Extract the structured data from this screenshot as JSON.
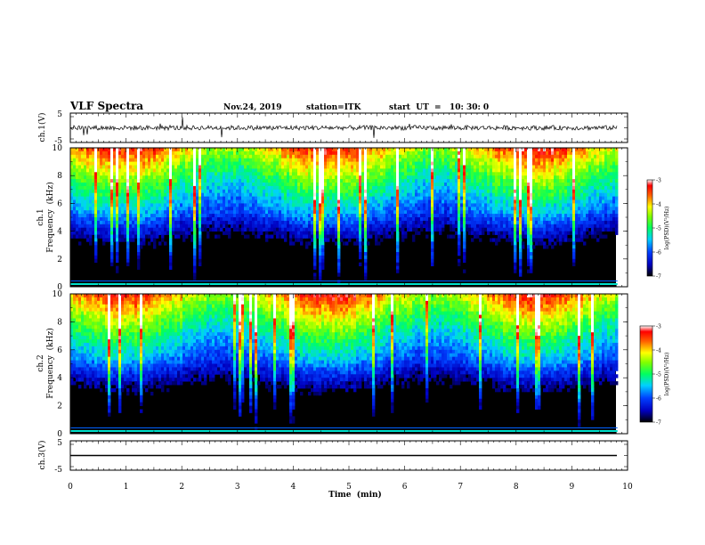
{
  "header": {
    "title": "VLF Spectra",
    "date": "Nov.24, 2019",
    "station": "station=ITK",
    "start_ut": "start  UT  =   10: 30: 0"
  },
  "chart_data": [
    {
      "type": "line",
      "name": "ch1-waveform",
      "ylabel": "ch.1(V)",
      "ylim": [
        -5,
        5
      ],
      "y_ticks": [
        "5",
        "-5"
      ],
      "x_range": [
        0,
        10
      ],
      "baseline_value": 0,
      "data_ends_at_min": 9.82
    },
    {
      "type": "heatmap",
      "name": "ch1-spectrogram",
      "ylabel_channel": "ch.1",
      "ylabel": "Frequency  (kHz)",
      "ylim": [
        0,
        10
      ],
      "y_ticks": [
        "0",
        "2",
        "4",
        "6",
        "8",
        "10"
      ],
      "x_range": [
        0,
        9.82
      ],
      "colorbar": {
        "label": "log(PSD)(V²/Hz)",
        "range": [
          -7,
          -3
        ],
        "ticks": [
          "-3",
          "-4",
          "-5",
          "-6",
          "-7"
        ]
      }
    },
    {
      "type": "heatmap",
      "name": "ch2-spectrogram",
      "ylabel_channel": "ch.2",
      "ylabel": "Frequency  (kHz)",
      "ylim": [
        0,
        10
      ],
      "y_ticks": [
        "0",
        "2",
        "4",
        "6",
        "8",
        "10"
      ],
      "x_range": [
        0,
        9.82
      ],
      "colorbar": {
        "label": "log(PSD)(V²/Hz)",
        "range": [
          -7,
          -3
        ],
        "ticks": [
          "-3",
          "-4",
          "-5",
          "-6",
          "-7"
        ]
      }
    },
    {
      "type": "line",
      "name": "ch3-waveform",
      "ylabel": "ch.3(V)",
      "ylim": [
        -5,
        5
      ],
      "y_ticks": [
        "5",
        "-5"
      ],
      "x_range": [
        0,
        10
      ],
      "baseline_value": 0,
      "data_ends_at_min": 9.82
    }
  ],
  "x_axis": {
    "label": "Time  (min)",
    "range": [
      0,
      10
    ],
    "ticks": [
      "0",
      "1",
      "2",
      "3",
      "4",
      "5",
      "6",
      "7",
      "8",
      "9",
      "10"
    ]
  },
  "colors": {
    "colormap": [
      "#000000",
      "#0000ff",
      "#00e0ff",
      "#00ff60",
      "#c0ff00",
      "#ffff00",
      "#ff8000",
      "#ff0000",
      "#ffffff"
    ]
  }
}
